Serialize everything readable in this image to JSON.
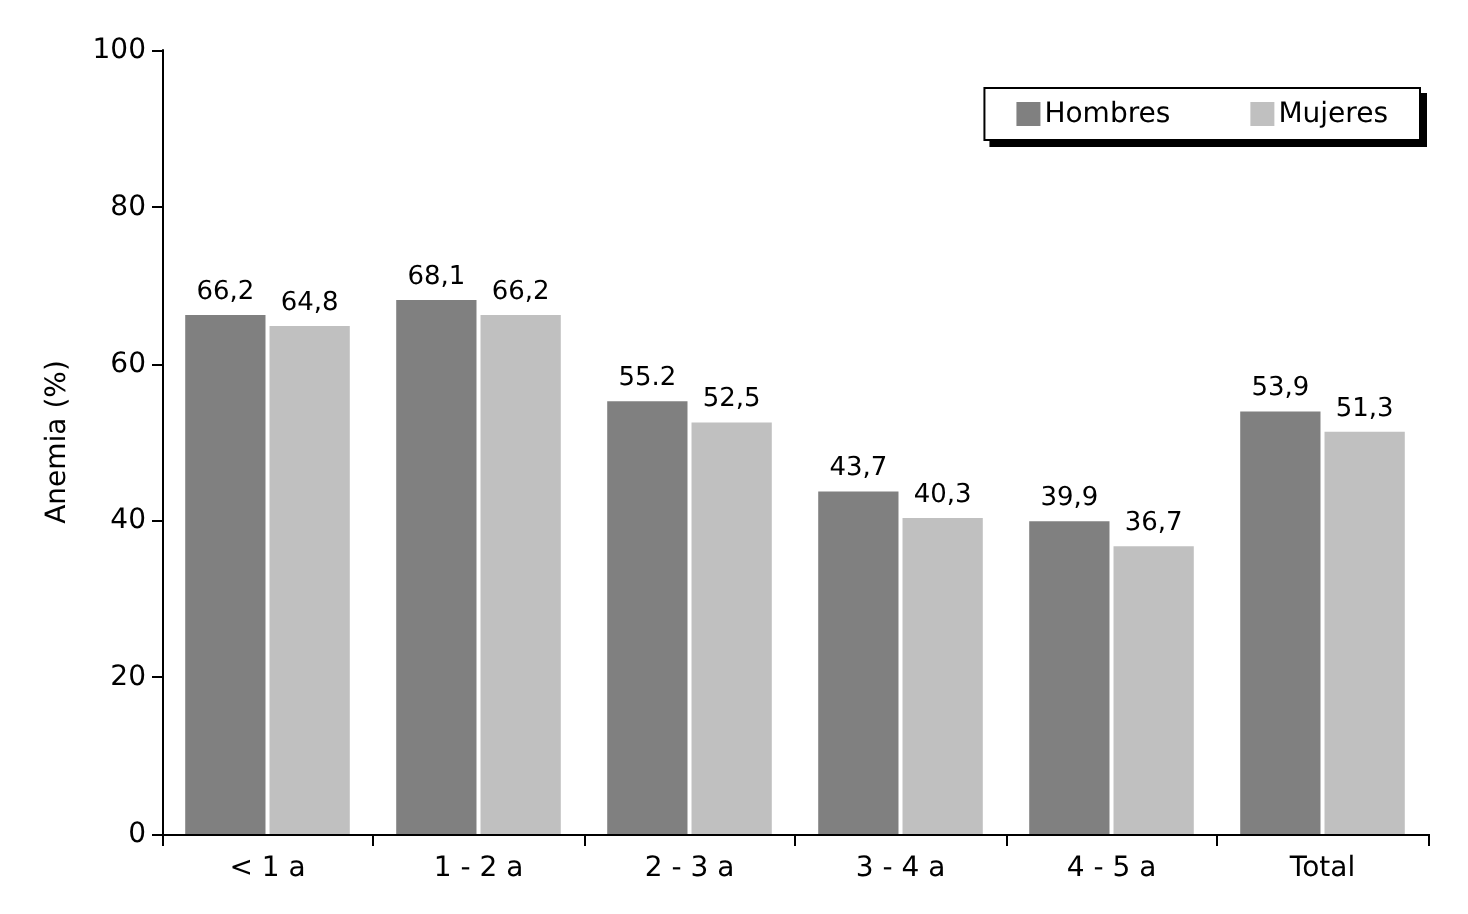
{
  "chart_data": {
    "type": "bar",
    "ylabel": "Anemia (%)",
    "categories": [
      "< 1 a",
      "1 - 2 a",
      "2 - 3 a",
      "3 - 4 a",
      "4 - 5 a",
      "Total"
    ],
    "series": [
      {
        "name": "Hombres",
        "color": "#808080",
        "values": [
          66.2,
          68.1,
          55.2,
          43.7,
          39.9,
          53.9
        ],
        "value_labels": [
          "66,2",
          "68,1",
          "55.2",
          "43,7",
          "39,9",
          "53,9"
        ]
      },
      {
        "name": "Mujeres",
        "color": "#c0c0c0",
        "values": [
          64.8,
          66.2,
          52.5,
          40.3,
          36.7,
          51.3
        ],
        "value_labels": [
          "64,8",
          "66,2",
          "52,5",
          "40,3",
          "36,7",
          "51,3"
        ]
      }
    ],
    "ylim": [
      0,
      100
    ],
    "yticks": [
      0,
      20,
      40,
      60,
      80,
      100
    ],
    "grid": false,
    "legend": "top right"
  }
}
